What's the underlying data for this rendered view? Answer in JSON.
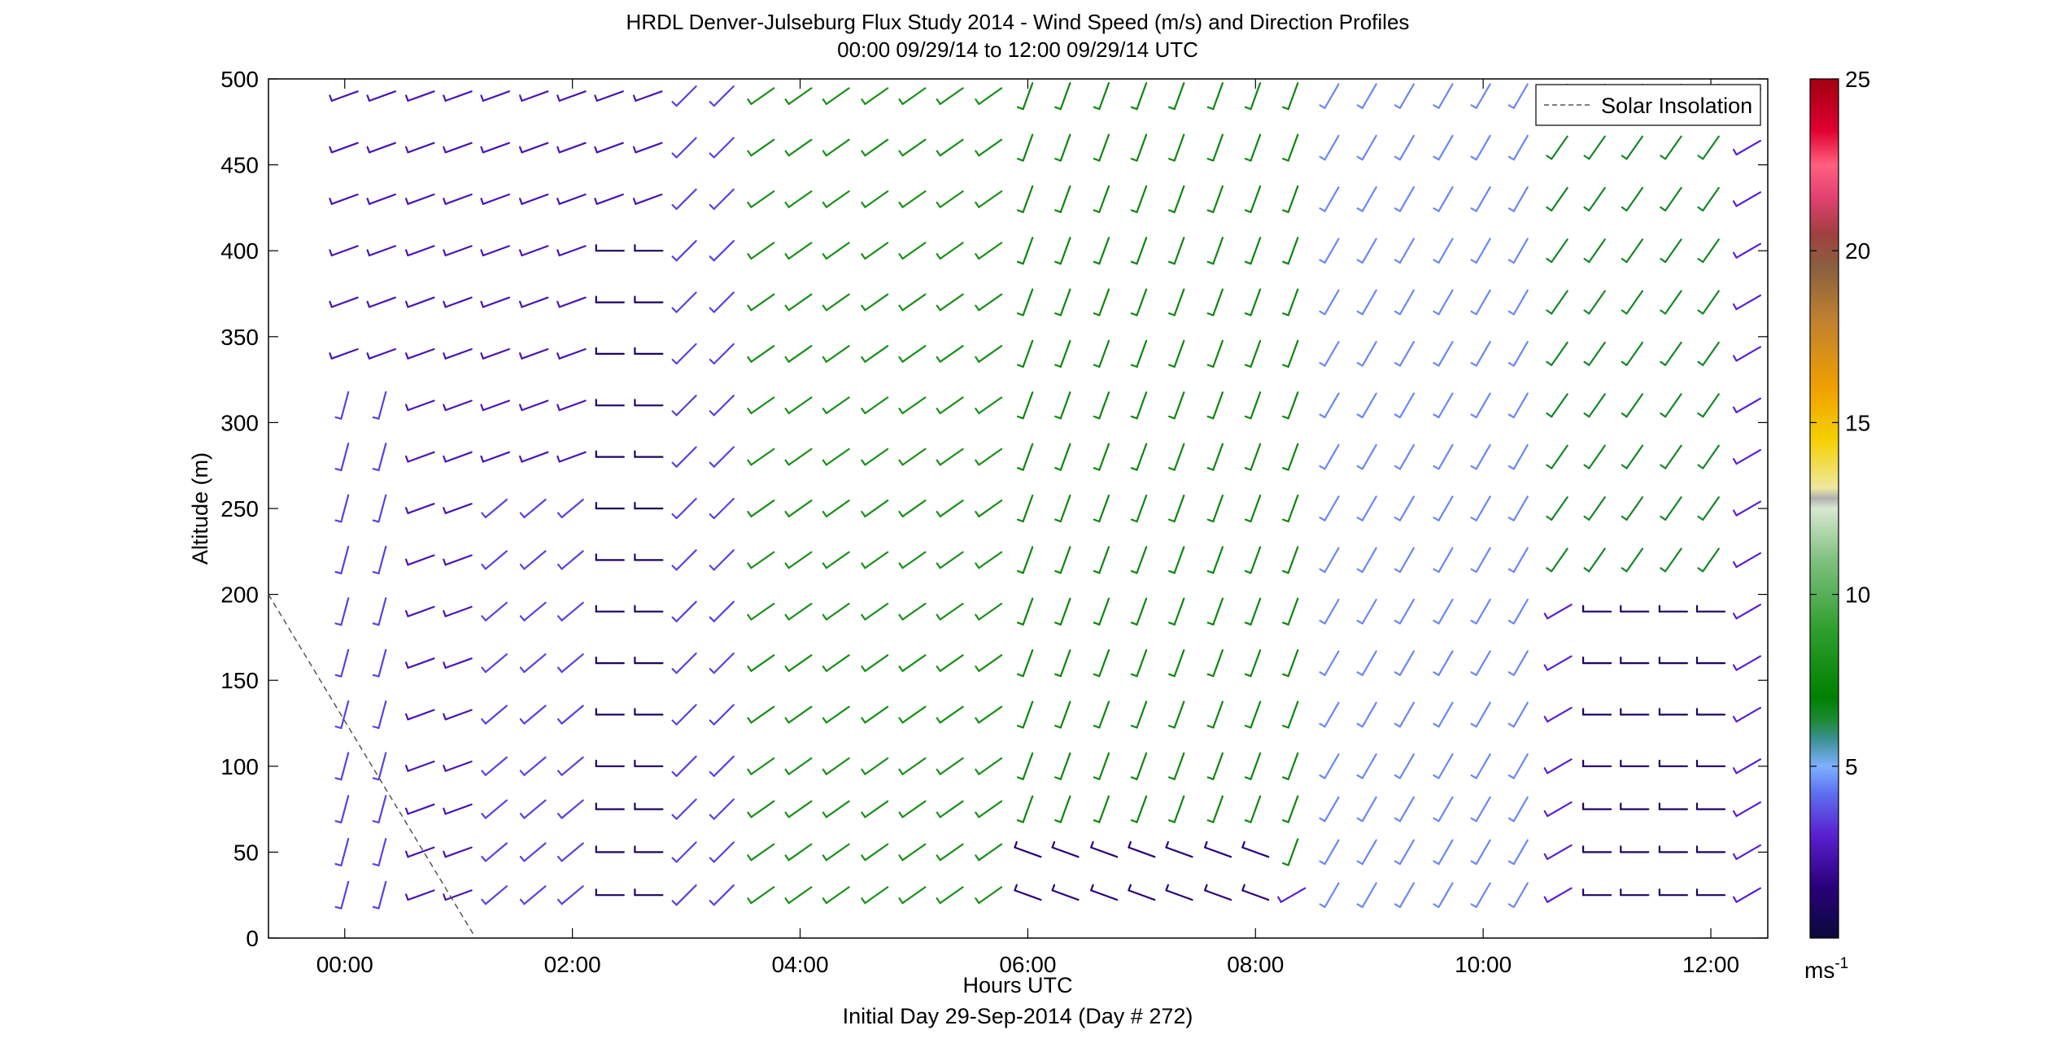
{
  "chart_data": {
    "type": "wind barb profile",
    "title": "HRDL Denver-Julseburg Flux Study 2014 - Wind Speed (m/s) and Direction Profiles",
    "subtitle": "00:00 09/29/14 to 12:00 09/29/14  UTC",
    "xlabel": "Hours UTC",
    "xlabel2": "Initial Day 29-Sep-2014 (Day # 272)",
    "ylabel": "Altitude (m)",
    "xlim_hours": [
      -0.67,
      12.5
    ],
    "ylim": [
      0,
      500
    ],
    "x_ticks": [
      {
        "h": 0,
        "label": "00:00"
      },
      {
        "h": 2,
        "label": "02:00"
      },
      {
        "h": 4,
        "label": "04:00"
      },
      {
        "h": 6,
        "label": "06:00"
      },
      {
        "h": 8,
        "label": "08:00"
      },
      {
        "h": 10,
        "label": "10:00"
      },
      {
        "h": 12,
        "label": "12:00"
      }
    ],
    "y_ticks": [
      {
        "v": 0,
        "label": "0"
      },
      {
        "v": 50,
        "label": "50"
      },
      {
        "v": 100,
        "label": "100"
      },
      {
        "v": 150,
        "label": "150"
      },
      {
        "v": 200,
        "label": "200"
      },
      {
        "v": 250,
        "label": "250"
      },
      {
        "v": 300,
        "label": "300"
      },
      {
        "v": 350,
        "label": "350"
      },
      {
        "v": 400,
        "label": "400"
      },
      {
        "v": 450,
        "label": "450"
      },
      {
        "v": 500,
        "label": "500"
      }
    ],
    "legend": {
      "position": "top-right",
      "entries": [
        {
          "name": "Solar Insolation",
          "style": "dashed",
          "color": "#555555"
        }
      ]
    },
    "solar_insolation": {
      "x": [
        -0.67,
        1.15
      ],
      "y": [
        200,
        0
      ]
    },
    "colorbar": {
      "range": [
        0,
        25
      ],
      "unit": "ms",
      "unit_exponent": "-1",
      "ticks": [
        {
          "v": 5,
          "label": "5"
        },
        {
          "v": 10,
          "label": "10"
        },
        {
          "v": 15,
          "label": "15"
        },
        {
          "v": 20,
          "label": "20"
        },
        {
          "v": 25,
          "label": "25"
        }
      ],
      "stops": [
        {
          "v": 0,
          "c": "#0a0a3a"
        },
        {
          "v": 1.5,
          "c": "#2a007a"
        },
        {
          "v": 3,
          "c": "#5a20d0"
        },
        {
          "v": 4.2,
          "c": "#5d6ff0"
        },
        {
          "v": 5,
          "c": "#7fb0ff"
        },
        {
          "v": 5.8,
          "c": "#3a9090"
        },
        {
          "v": 6.3,
          "c": "#1e8a3a"
        },
        {
          "v": 7,
          "c": "#008000"
        },
        {
          "v": 9,
          "c": "#2f9f2f"
        },
        {
          "v": 11,
          "c": "#80c080"
        },
        {
          "v": 12.5,
          "c": "#d8e8d0"
        },
        {
          "v": 12.8,
          "c": "#b0b0b0"
        },
        {
          "v": 13.1,
          "c": "#f0e8a0"
        },
        {
          "v": 14.5,
          "c": "#f5d000"
        },
        {
          "v": 16,
          "c": "#f0a000"
        },
        {
          "v": 18,
          "c": "#c08030"
        },
        {
          "v": 19.5,
          "c": "#8a6040"
        },
        {
          "v": 20.5,
          "c": "#a04040"
        },
        {
          "v": 21.5,
          "c": "#e04070"
        },
        {
          "v": 22.5,
          "c": "#ff6080"
        },
        {
          "v": 23.5,
          "c": "#e00030"
        },
        {
          "v": 25,
          "c": "#a00010"
        }
      ]
    },
    "profiles": {
      "times_hours": [
        0.0,
        0.33,
        0.67,
        1.0,
        1.33,
        1.67,
        2.0,
        2.33,
        2.67,
        3.0,
        3.33,
        3.67,
        4.0,
        4.33,
        4.67,
        5.0,
        5.33,
        5.67,
        6.0,
        6.33,
        6.67,
        7.0,
        7.33,
        7.67,
        8.0,
        8.33,
        8.67,
        9.0,
        9.33,
        9.67,
        10.0,
        10.33,
        10.67,
        11.0,
        11.33,
        11.67,
        12.0,
        12.33
      ],
      "altitudes_m": [
        490,
        460,
        430,
        400,
        370,
        340,
        310,
        280,
        250,
        220,
        190,
        160,
        130,
        100,
        75,
        50,
        25
      ],
      "regions": [
        {
          "hours": [
            0.0,
            2.8
          ],
          "alt": [
            0,
            500
          ],
          "direction_deg": 250,
          "speed_ms": 2.5
        },
        {
          "hours": [
            0.0,
            0.4
          ],
          "alt": [
            0,
            330
          ],
          "direction_deg": 195,
          "speed_ms": 3.5
        },
        {
          "hours": [
            1.1,
            2.0
          ],
          "alt": [
            0,
            260
          ],
          "direction_deg": 230,
          "speed_ms": 3.5
        },
        {
          "hours": [
            2.3,
            2.8
          ],
          "alt": [
            0,
            400
          ],
          "direction_deg": 270,
          "speed_ms": 1.0
        },
        {
          "hours": [
            3.0,
            4.2
          ],
          "alt": [
            0,
            500
          ],
          "direction_deg": 225,
          "speed_ms": 3.5
        },
        {
          "hours": [
            3.6,
            6.0
          ],
          "alt": [
            0,
            500
          ],
          "direction_deg": 235,
          "speed_ms": 8.0
        },
        {
          "hours": [
            6.0,
            8.5
          ],
          "alt": [
            50,
            500
          ],
          "direction_deg": 200,
          "speed_ms": 7.5
        },
        {
          "hours": [
            6.0,
            8.0
          ],
          "alt": [
            0,
            50
          ],
          "direction_deg": 290,
          "speed_ms": 1.5
        },
        {
          "hours": [
            8.5,
            10.5
          ],
          "alt": [
            0,
            500
          ],
          "direction_deg": 210,
          "speed_ms": 4.5
        },
        {
          "hours": [
            10.5,
            12.3
          ],
          "alt": [
            200,
            500
          ],
          "direction_deg": 215,
          "speed_ms": 6.5
        },
        {
          "hours": [
            11.0,
            12.3
          ],
          "alt": [
            0,
            200
          ],
          "direction_deg": 270,
          "speed_ms": 1.0
        }
      ]
    }
  }
}
